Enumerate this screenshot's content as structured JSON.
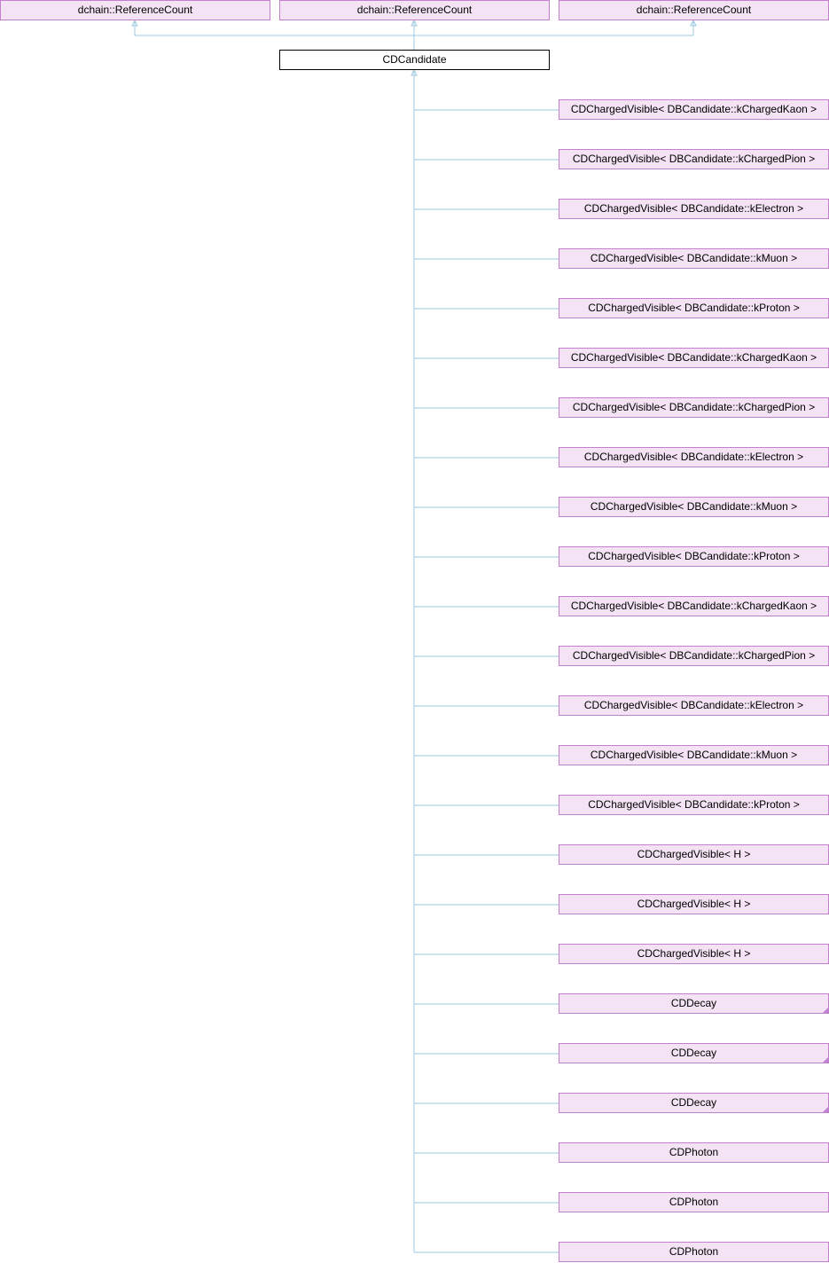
{
  "colors": {
    "edge": "#9ccadf",
    "node_fill": "#f3e3f4",
    "node_border": "#c57fd1",
    "current_fill": "#ffffff",
    "current_border": "#000000"
  },
  "bases": [
    "dchain::ReferenceCount",
    "dchain::ReferenceCount",
    "dchain::ReferenceCount"
  ],
  "current": "CDCandidate",
  "derived": [
    {
      "label": "CDChargedVisible< DBCandidate::kChargedKaon >",
      "truncated": false
    },
    {
      "label": "CDChargedVisible< DBCandidate::kChargedPion >",
      "truncated": false
    },
    {
      "label": "CDChargedVisible< DBCandidate::kElectron >",
      "truncated": false
    },
    {
      "label": "CDChargedVisible< DBCandidate::kMuon >",
      "truncated": false
    },
    {
      "label": "CDChargedVisible< DBCandidate::kProton >",
      "truncated": false
    },
    {
      "label": "CDChargedVisible< DBCandidate::kChargedKaon >",
      "truncated": false
    },
    {
      "label": "CDChargedVisible< DBCandidate::kChargedPion >",
      "truncated": false
    },
    {
      "label": "CDChargedVisible< DBCandidate::kElectron >",
      "truncated": false
    },
    {
      "label": "CDChargedVisible< DBCandidate::kMuon >",
      "truncated": false
    },
    {
      "label": "CDChargedVisible< DBCandidate::kProton >",
      "truncated": false
    },
    {
      "label": "CDChargedVisible< DBCandidate::kChargedKaon >",
      "truncated": false
    },
    {
      "label": "CDChargedVisible< DBCandidate::kChargedPion >",
      "truncated": false
    },
    {
      "label": "CDChargedVisible< DBCandidate::kElectron >",
      "truncated": false
    },
    {
      "label": "CDChargedVisible< DBCandidate::kMuon >",
      "truncated": false
    },
    {
      "label": "CDChargedVisible< DBCandidate::kProton >",
      "truncated": false
    },
    {
      "label": "CDChargedVisible< H >",
      "truncated": false
    },
    {
      "label": "CDChargedVisible< H >",
      "truncated": false
    },
    {
      "label": "CDChargedVisible< H >",
      "truncated": false
    },
    {
      "label": "CDDecay",
      "truncated": true
    },
    {
      "label": "CDDecay",
      "truncated": true
    },
    {
      "label": "CDDecay",
      "truncated": true
    },
    {
      "label": "CDPhoton",
      "truncated": false
    },
    {
      "label": "CDPhoton",
      "truncated": false
    },
    {
      "label": "CDPhoton",
      "truncated": false
    }
  ]
}
